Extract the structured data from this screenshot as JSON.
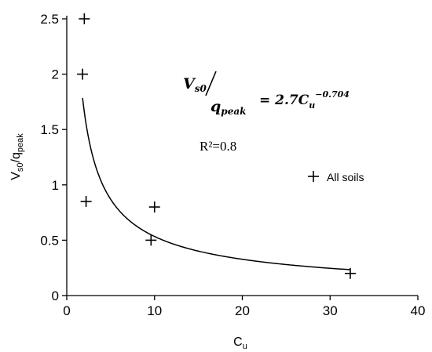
{
  "chart_data": {
    "type": "scatter",
    "xlabel": {
      "main": "C",
      "sub": "u"
    },
    "ylabel": {
      "main": "V",
      "sub1": "s0",
      "mid": "/q",
      "sub2": "peak"
    },
    "xlim": [
      0,
      40
    ],
    "ylim": [
      0,
      2.5
    ],
    "x_ticks": [
      0,
      10,
      20,
      30,
      40
    ],
    "x_tick_labels": [
      "0",
      "10",
      "20",
      "30",
      "40"
    ],
    "y_ticks": [
      0,
      0.5,
      1,
      1.5,
      2,
      2.5
    ],
    "y_tick_labels": [
      "0",
      "0.5",
      "1",
      "1.5",
      "2",
      "2.5"
    ],
    "grid": false,
    "series": [
      {
        "name": "All soils",
        "marker": "+",
        "points": [
          {
            "x": 2.0,
            "y": 2.5
          },
          {
            "x": 1.8,
            "y": 2.0
          },
          {
            "x": 2.2,
            "y": 0.85
          },
          {
            "x": 10.0,
            "y": 0.8
          },
          {
            "x": 9.6,
            "y": 0.5
          },
          {
            "x": 32.3,
            "y": 0.2
          }
        ]
      }
    ],
    "fit_curve": {
      "coefficient": 2.7,
      "exponent": -0.704,
      "x_range": [
        1.8,
        32.3
      ]
    },
    "legend": {
      "placement": "right",
      "label": "All soils"
    },
    "annotations": {
      "equation": {
        "numerator_main": "V",
        "numerator_sub": "s0",
        "denominator_main": "q",
        "denominator_sub": "peak",
        "rhs_prefix": "= 2.7C",
        "rhs_sub": "u",
        "rhs_sup": "−0.704"
      },
      "r_squared": "R²=0.8"
    }
  }
}
